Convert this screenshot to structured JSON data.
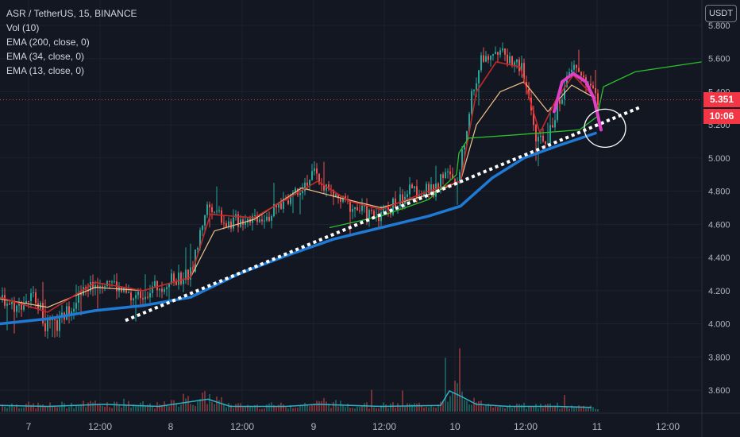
{
  "legend": {
    "symbol": "ASR / TetherUS, 15, BINANCE",
    "vol": "Vol (10)",
    "ema200": "EMA (200, close, 0)",
    "ema34": "EMA (34, close, 0)",
    "ema13": "EMA (13, close, 0)"
  },
  "unit_label": "USDT",
  "last_price_label": "5.351",
  "countdown_label": "10:06",
  "colors": {
    "background": "#131722",
    "grid": "#1e2230",
    "up": "#26a69a",
    "down": "#ef5350",
    "ema200": "#1e7ad4",
    "ema34": "#f2c48a",
    "ema13": "#c62828",
    "volume_ma": "#2fb1c6",
    "drawing_green": "#2bc02b",
    "drawing_pink": "#e040c8",
    "drawing_dots": "#ffffff",
    "price_tag": "#f23645"
  },
  "chart_data": {
    "type": "candlestick",
    "title": "ASR / TetherUS, 15, BINANCE",
    "y_unit": "USDT",
    "ylim": [
      3.5,
      5.85
    ],
    "y_ticks": [
      "5.800",
      "5.600",
      "5.400",
      "5.200",
      "5.000",
      "4.800",
      "4.600",
      "4.400",
      "4.200",
      "4.000",
      "3.800",
      "3.600"
    ],
    "x_ticks": [
      "7",
      "12:00",
      "8",
      "12:00",
      "9",
      "12:00",
      "10",
      "12:00",
      "11",
      "12:00"
    ],
    "grid": true,
    "last_price": 5.351,
    "price_path": [
      [
        0,
        4.16
      ],
      [
        20,
        4.1
      ],
      [
        30,
        4.14
      ],
      [
        45,
        4.17
      ],
      [
        55,
        4.0
      ],
      [
        70,
        3.98
      ],
      [
        90,
        4.12
      ],
      [
        110,
        4.22
      ],
      [
        135,
        4.28
      ],
      [
        150,
        4.2
      ],
      [
        165,
        4.15
      ],
      [
        185,
        4.2
      ],
      [
        215,
        4.26
      ],
      [
        240,
        4.3
      ],
      [
        258,
        4.7
      ],
      [
        268,
        4.72
      ],
      [
        285,
        4.6
      ],
      [
        310,
        4.64
      ],
      [
        340,
        4.66
      ],
      [
        365,
        4.78
      ],
      [
        395,
        4.9
      ],
      [
        420,
        4.76
      ],
      [
        445,
        4.7
      ],
      [
        470,
        4.65
      ],
      [
        490,
        4.7
      ],
      [
        515,
        4.8
      ],
      [
        545,
        4.8
      ],
      [
        558,
        4.92
      ],
      [
        575,
        4.82
      ],
      [
        590,
        5.3
      ],
      [
        605,
        5.6
      ],
      [
        620,
        5.66
      ],
      [
        640,
        5.6
      ],
      [
        655,
        5.55
      ],
      [
        668,
        5.3
      ],
      [
        675,
        5.08
      ],
      [
        690,
        5.12
      ],
      [
        705,
        5.38
      ],
      [
        722,
        5.55
      ],
      [
        740,
        5.45
      ],
      [
        750,
        5.36
      ]
    ],
    "volume_ma_path": [
      [
        0,
        0.06
      ],
      [
        60,
        0.05
      ],
      [
        130,
        0.07
      ],
      [
        200,
        0.05
      ],
      [
        262,
        0.12
      ],
      [
        290,
        0.05
      ],
      [
        360,
        0.05
      ],
      [
        400,
        0.07
      ],
      [
        480,
        0.05
      ],
      [
        555,
        0.06
      ],
      [
        566,
        0.2
      ],
      [
        580,
        0.15
      ],
      [
        600,
        0.07
      ],
      [
        640,
        0.05
      ],
      [
        700,
        0.05
      ],
      [
        745,
        0.04
      ]
    ],
    "ema200": [
      [
        0,
        4.0
      ],
      [
        60,
        4.03
      ],
      [
        120,
        4.08
      ],
      [
        180,
        4.11
      ],
      [
        240,
        4.16
      ],
      [
        300,
        4.3
      ],
      [
        360,
        4.41
      ],
      [
        420,
        4.51
      ],
      [
        480,
        4.58
      ],
      [
        540,
        4.65
      ],
      [
        580,
        4.71
      ],
      [
        620,
        4.88
      ],
      [
        660,
        5.0
      ],
      [
        700,
        5.07
      ],
      [
        750,
        5.15
      ]
    ],
    "ema34": [
      [
        0,
        4.15
      ],
      [
        60,
        4.1
      ],
      [
        120,
        4.22
      ],
      [
        180,
        4.2
      ],
      [
        240,
        4.28
      ],
      [
        270,
        4.56
      ],
      [
        320,
        4.63
      ],
      [
        380,
        4.82
      ],
      [
        420,
        4.77
      ],
      [
        480,
        4.7
      ],
      [
        540,
        4.78
      ],
      [
        580,
        4.86
      ],
      [
        600,
        5.2
      ],
      [
        630,
        5.4
      ],
      [
        660,
        5.46
      ],
      [
        690,
        5.28
      ],
      [
        720,
        5.44
      ],
      [
        750,
        5.36
      ]
    ],
    "ema13": [
      [
        0,
        4.16
      ],
      [
        60,
        4.07
      ],
      [
        120,
        4.25
      ],
      [
        180,
        4.2
      ],
      [
        240,
        4.28
      ],
      [
        265,
        4.66
      ],
      [
        320,
        4.64
      ],
      [
        400,
        4.86
      ],
      [
        440,
        4.74
      ],
      [
        480,
        4.69
      ],
      [
        540,
        4.8
      ],
      [
        580,
        4.86
      ],
      [
        600,
        5.4
      ],
      [
        625,
        5.58
      ],
      [
        655,
        5.55
      ],
      [
        680,
        5.15
      ],
      [
        700,
        5.35
      ],
      [
        722,
        5.5
      ],
      [
        750,
        5.36
      ]
    ],
    "annotations": {
      "trendline_dotted": [
        [
          158,
          4.02
        ],
        [
          808,
          5.31
        ]
      ],
      "green_curve": [
        [
          415,
          4.58
        ],
        [
          480,
          4.65
        ],
        [
          540,
          4.75
        ],
        [
          575,
          4.9
        ],
        [
          578,
          5.03
        ],
        [
          590,
          5.12
        ],
        [
          650,
          5.14
        ],
        [
          730,
          5.17
        ],
        [
          752,
          5.25
        ],
        [
          760,
          5.43
        ],
        [
          800,
          5.52
        ],
        [
          884,
          5.58
        ]
      ],
      "pink_arc": [
        [
          698,
          5.28
        ],
        [
          708,
          5.46
        ],
        [
          722,
          5.51
        ],
        [
          738,
          5.46
        ],
        [
          748,
          5.36
        ],
        [
          757,
          5.17
        ]
      ],
      "circle": {
        "x": 762,
        "y": 5.18
      }
    }
  }
}
